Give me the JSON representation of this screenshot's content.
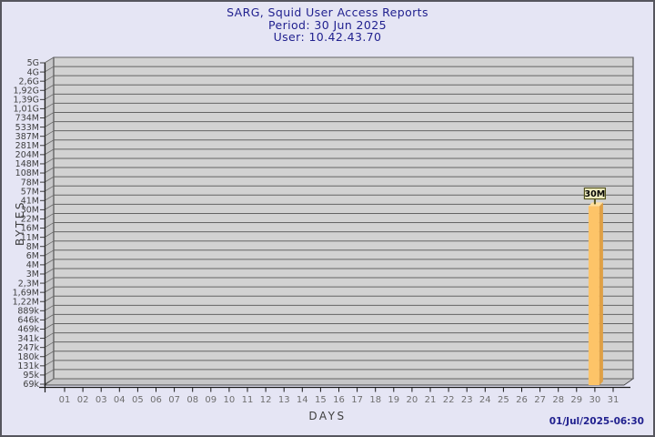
{
  "colors": {
    "background": "#e5e5f4",
    "frame-border": "#56565e",
    "title-color": "#21218f",
    "axis-title-color": "#3e3e3e",
    "plot-bg": "#d2d2d2",
    "grid-line": "#646464",
    "wall-fill": "#c6c6c8",
    "wall-diag": "#6a6a6a",
    "axis-line": "#1a1a1a",
    "y-tick-text": "#3e3e3e",
    "x-tick-text": "#6e6e6e",
    "bar-front": "#fdc468",
    "bar-side": "#dfa045",
    "bar-top": "#ffdf9c",
    "bar-label-bg": "#f2efc2",
    "bar-label-border": "#55551e",
    "bar-label-text": "#000000"
  },
  "chart_data": {
    "type": "bar",
    "title": "SARG, Squid User Access Reports",
    "period": "Period: 30 Jun 2025",
    "user": "User: 10.42.43.70",
    "xlabel": "DAYS",
    "ylabel": "BYTES",
    "timestamp": "01/Jul/2025-06:30",
    "x_ticks": [
      "01",
      "02",
      "03",
      "04",
      "05",
      "06",
      "07",
      "08",
      "09",
      "10",
      "11",
      "12",
      "13",
      "14",
      "15",
      "16",
      "17",
      "18",
      "19",
      "20",
      "21",
      "22",
      "23",
      "24",
      "25",
      "26",
      "27",
      "28",
      "29",
      "30",
      "31"
    ],
    "y_ticks_top_to_bottom": [
      "5G",
      "4G",
      "2,6G",
      "1,92G",
      "1,39G",
      "1,01G",
      "734M",
      "533M",
      "387M",
      "281M",
      "204M",
      "148M",
      "108M",
      "78M",
      "57M",
      "41M",
      "30M",
      "22M",
      "16M",
      "11M",
      "8M",
      "6M",
      "4M",
      "3M",
      "2,3M",
      "1,69M",
      "1,22M",
      "889k",
      "646k",
      "469k",
      "341k",
      "247k",
      "180k",
      "131k",
      "95k",
      "69k"
    ],
    "grid": true,
    "legend": "none",
    "bars": [
      {
        "day": "30",
        "value_label": "30M"
      }
    ]
  }
}
